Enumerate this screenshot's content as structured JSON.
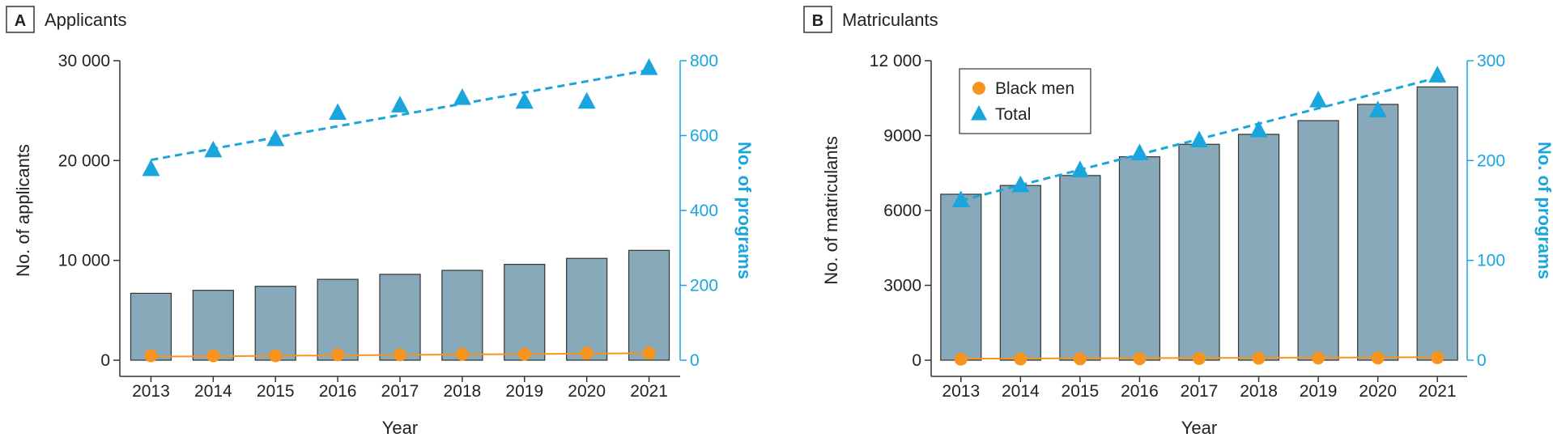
{
  "chart_data": [
    {
      "type": "bar",
      "panel_letter": "A",
      "title": "Applicants",
      "xlabel": "Year",
      "ylabel": "No. of applicants",
      "y2label": "No. of programs",
      "categories": [
        "2013",
        "2014",
        "2015",
        "2016",
        "2017",
        "2018",
        "2019",
        "2020",
        "2021"
      ],
      "ylim": [
        0,
        30000
      ],
      "y_ticks": [
        0,
        10000,
        20000,
        30000
      ],
      "y_tick_labels": [
        "0",
        "10 000",
        "20 000",
        "30 000"
      ],
      "y2lim": [
        0,
        800
      ],
      "y2_ticks": [
        0,
        200,
        400,
        600,
        800
      ],
      "y2_tick_labels": [
        "0",
        "200",
        "400",
        "600",
        "800"
      ],
      "series": [
        {
          "name": "Applicants",
          "kind": "bar",
          "axis": "left",
          "values": [
            6700,
            7000,
            7400,
            8100,
            8600,
            9000,
            9600,
            10200,
            11000
          ]
        },
        {
          "name": "Black men",
          "kind": "point",
          "axis": "left",
          "values": [
            450,
            450,
            450,
            550,
            550,
            600,
            600,
            700,
            700
          ]
        },
        {
          "name": "Total",
          "kind": "point",
          "axis": "right",
          "values": [
            510,
            560,
            590,
            660,
            680,
            700,
            690,
            690,
            780
          ]
        }
      ],
      "trendlines": [
        {
          "series": "Black men",
          "axis": "left",
          "start": 350,
          "end": 700
        },
        {
          "series": "Total",
          "axis": "right",
          "start": 535,
          "end": 775
        }
      ],
      "colors": {
        "bar": "#87a9b9",
        "bar_edge": "#333333",
        "black_men": "#f7941d",
        "total": "#1aa5dd",
        "axis": "#333333",
        "right_axis": "#1aa5dd"
      }
    },
    {
      "type": "bar",
      "panel_letter": "B",
      "title": "Matriculants",
      "xlabel": "Year",
      "ylabel": "No. of matriculants",
      "y2label": "No. of programs",
      "categories": [
        "2013",
        "2014",
        "2015",
        "2016",
        "2017",
        "2018",
        "2019",
        "2020",
        "2021"
      ],
      "ylim": [
        0,
        12000
      ],
      "y_ticks": [
        0,
        3000,
        6000,
        9000,
        12000
      ],
      "y_tick_labels": [
        "0",
        "3000",
        "6000",
        "9000",
        "12 000"
      ],
      "y2lim": [
        0,
        300
      ],
      "y2_ticks": [
        0,
        100,
        200,
        300
      ],
      "y2_tick_labels": [
        "0",
        "100",
        "200",
        "300"
      ],
      "series": [
        {
          "name": "Matriculants",
          "kind": "bar",
          "axis": "left",
          "values": [
            6650,
            7000,
            7400,
            8150,
            8650,
            9050,
            9600,
            10250,
            10950
          ]
        },
        {
          "name": "Black men",
          "kind": "point",
          "axis": "left",
          "values": [
            40,
            50,
            55,
            60,
            70,
            80,
            90,
            90,
            100
          ]
        },
        {
          "name": "Total",
          "kind": "point",
          "axis": "right",
          "values": [
            160,
            175,
            190,
            207,
            220,
            230,
            260,
            250,
            285
          ]
        }
      ],
      "trendlines": [
        {
          "series": "Black men",
          "axis": "left",
          "start": 60,
          "end": 120
        },
        {
          "series": "Total",
          "axis": "right",
          "start": 160,
          "end": 283
        }
      ],
      "legend": {
        "position": "top-left",
        "entries": [
          "Black men",
          "Total"
        ]
      },
      "colors": {
        "bar": "#87a9b9",
        "bar_edge": "#333333",
        "black_men": "#f7941d",
        "total": "#1aa5dd",
        "axis": "#333333",
        "right_axis": "#1aa5dd"
      }
    }
  ]
}
